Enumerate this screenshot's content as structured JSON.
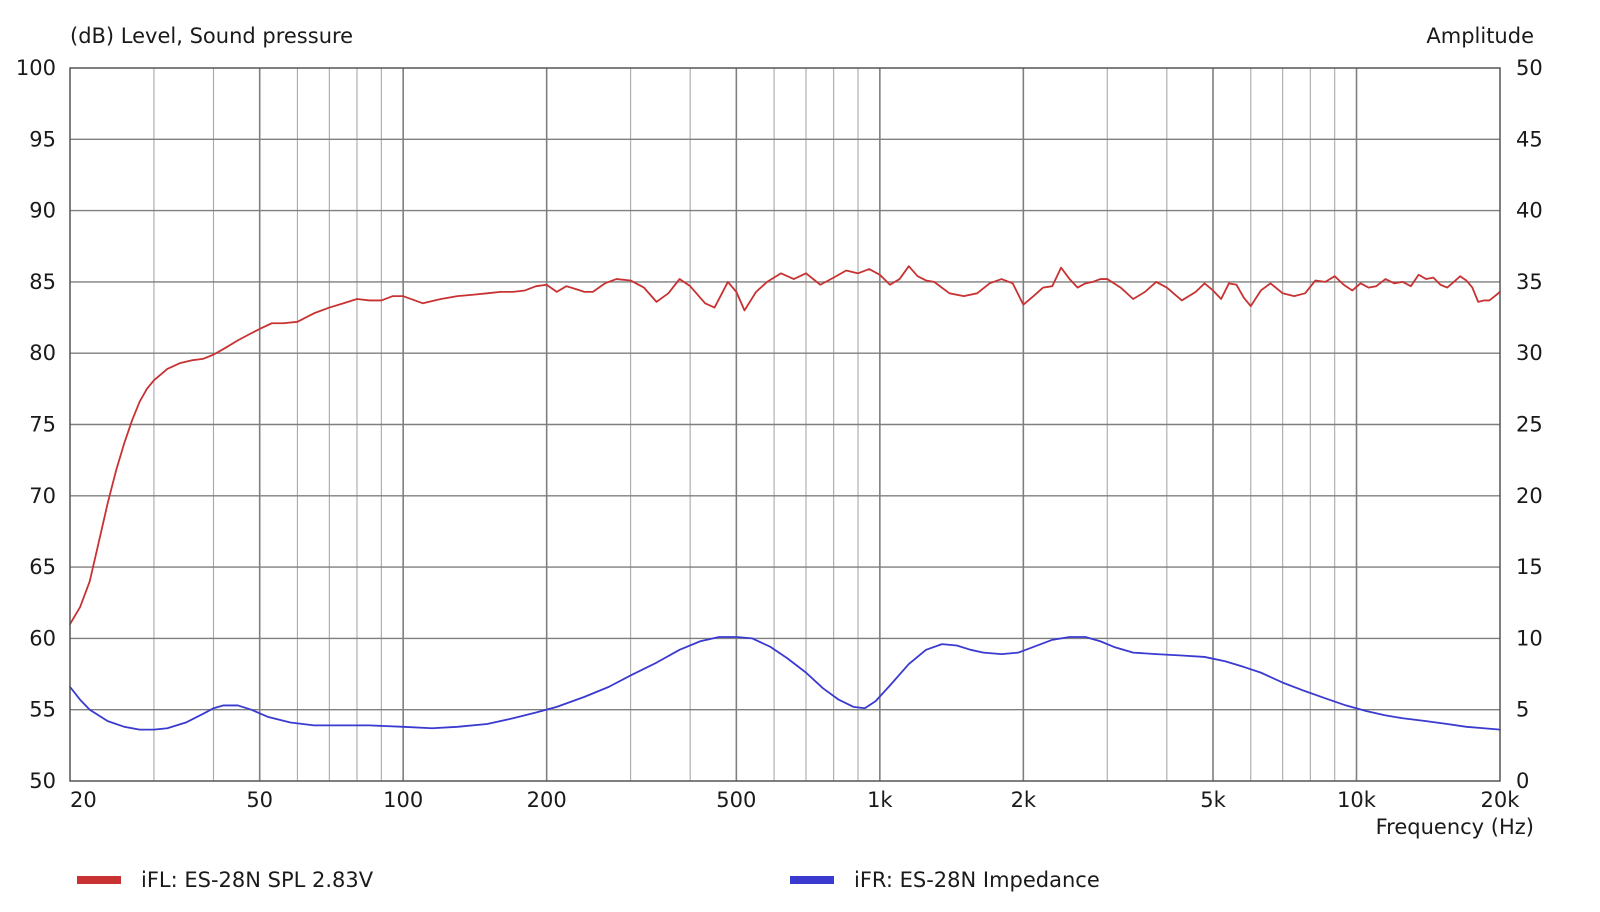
{
  "chart_data": {
    "type": "line",
    "title_left": "(dB)  Level, Sound pressure",
    "title_right": "Amplitude",
    "xlabel": "Frequency  (Hz)",
    "x_scale": "log",
    "xlim": [
      20,
      20000
    ],
    "ylim_left": [
      50,
      100
    ],
    "ylim_right": [
      0,
      50
    ],
    "grid": true,
    "x_ticks": [
      {
        "value": 20,
        "label": "20"
      },
      {
        "value": 50,
        "label": "50"
      },
      {
        "value": 100,
        "label": "100"
      },
      {
        "value": 200,
        "label": "200"
      },
      {
        "value": 500,
        "label": "500"
      },
      {
        "value": 1000,
        "label": "1k"
      },
      {
        "value": 2000,
        "label": "2k"
      },
      {
        "value": 5000,
        "label": "5k"
      },
      {
        "value": 10000,
        "label": "10k"
      },
      {
        "value": 20000,
        "label": "20k"
      }
    ],
    "y_ticks_left": [
      "50",
      "55",
      "60",
      "65",
      "70",
      "75",
      "80",
      "85",
      "90",
      "95",
      "100"
    ],
    "y_ticks_right": [
      "0",
      "5",
      "10",
      "15",
      "20",
      "25",
      "30",
      "35",
      "40",
      "45",
      "50"
    ],
    "legend_position": "bottom",
    "series": [
      {
        "name": "iFL: ES-28N SPL 2.83V",
        "color": "#c83232",
        "axis": "left",
        "points": [
          [
            20,
            61.0
          ],
          [
            21,
            62.2
          ],
          [
            22,
            64.0
          ],
          [
            23,
            66.8
          ],
          [
            24,
            69.5
          ],
          [
            25,
            71.8
          ],
          [
            26,
            73.7
          ],
          [
            27,
            75.3
          ],
          [
            28,
            76.6
          ],
          [
            29,
            77.5
          ],
          [
            30,
            78.1
          ],
          [
            32,
            78.9
          ],
          [
            34,
            79.3
          ],
          [
            36,
            79.5
          ],
          [
            38,
            79.6
          ],
          [
            40,
            79.9
          ],
          [
            42,
            80.3
          ],
          [
            45,
            80.9
          ],
          [
            48,
            81.4
          ],
          [
            50,
            81.7
          ],
          [
            53,
            82.1
          ],
          [
            56,
            82.1
          ],
          [
            60,
            82.2
          ],
          [
            65,
            82.8
          ],
          [
            70,
            83.2
          ],
          [
            75,
            83.5
          ],
          [
            80,
            83.8
          ],
          [
            85,
            83.7
          ],
          [
            90,
            83.7
          ],
          [
            95,
            84.0
          ],
          [
            100,
            84.0
          ],
          [
            110,
            83.5
          ],
          [
            120,
            83.8
          ],
          [
            130,
            84.0
          ],
          [
            140,
            84.1
          ],
          [
            150,
            84.2
          ],
          [
            160,
            84.3
          ],
          [
            170,
            84.3
          ],
          [
            180,
            84.4
          ],
          [
            190,
            84.7
          ],
          [
            200,
            84.8
          ],
          [
            210,
            84.3
          ],
          [
            220,
            84.7
          ],
          [
            230,
            84.5
          ],
          [
            240,
            84.3
          ],
          [
            250,
            84.3
          ],
          [
            265,
            84.9
          ],
          [
            280,
            85.2
          ],
          [
            300,
            85.1
          ],
          [
            320,
            84.6
          ],
          [
            340,
            83.6
          ],
          [
            360,
            84.2
          ],
          [
            380,
            85.2
          ],
          [
            400,
            84.7
          ],
          [
            430,
            83.5
          ],
          [
            450,
            83.2
          ],
          [
            480,
            85.0
          ],
          [
            500,
            84.3
          ],
          [
            520,
            83.0
          ],
          [
            550,
            84.3
          ],
          [
            580,
            85.0
          ],
          [
            620,
            85.6
          ],
          [
            660,
            85.2
          ],
          [
            700,
            85.6
          ],
          [
            750,
            84.8
          ],
          [
            800,
            85.3
          ],
          [
            850,
            85.8
          ],
          [
            900,
            85.6
          ],
          [
            950,
            85.9
          ],
          [
            1000,
            85.5
          ],
          [
            1050,
            84.8
          ],
          [
            1100,
            85.2
          ],
          [
            1150,
            86.1
          ],
          [
            1200,
            85.4
          ],
          [
            1250,
            85.1
          ],
          [
            1300,
            85.0
          ],
          [
            1400,
            84.2
          ],
          [
            1500,
            84.0
          ],
          [
            1600,
            84.2
          ],
          [
            1700,
            84.9
          ],
          [
            1800,
            85.2
          ],
          [
            1900,
            84.9
          ],
          [
            2000,
            83.4
          ],
          [
            2100,
            84.0
          ],
          [
            2200,
            84.6
          ],
          [
            2300,
            84.7
          ],
          [
            2400,
            86.0
          ],
          [
            2500,
            85.2
          ],
          [
            2600,
            84.6
          ],
          [
            2700,
            84.9
          ],
          [
            2800,
            85.0
          ],
          [
            2900,
            85.2
          ],
          [
            3000,
            85.2
          ],
          [
            3200,
            84.6
          ],
          [
            3400,
            83.8
          ],
          [
            3600,
            84.3
          ],
          [
            3800,
            85.0
          ],
          [
            4000,
            84.6
          ],
          [
            4300,
            83.7
          ],
          [
            4600,
            84.3
          ],
          [
            4800,
            84.9
          ],
          [
            5000,
            84.4
          ],
          [
            5200,
            83.8
          ],
          [
            5400,
            84.9
          ],
          [
            5600,
            84.8
          ],
          [
            5800,
            83.9
          ],
          [
            6000,
            83.3
          ],
          [
            6300,
            84.4
          ],
          [
            6600,
            84.9
          ],
          [
            7000,
            84.2
          ],
          [
            7400,
            84.0
          ],
          [
            7800,
            84.2
          ],
          [
            8200,
            85.1
          ],
          [
            8600,
            85.0
          ],
          [
            9000,
            85.4
          ],
          [
            9400,
            84.8
          ],
          [
            9800,
            84.4
          ],
          [
            10200,
            84.9
          ],
          [
            10600,
            84.6
          ],
          [
            11000,
            84.7
          ],
          [
            11500,
            85.2
          ],
          [
            12000,
            84.9
          ],
          [
            12500,
            85.0
          ],
          [
            13000,
            84.7
          ],
          [
            13500,
            85.5
          ],
          [
            14000,
            85.2
          ],
          [
            14500,
            85.3
          ],
          [
            15000,
            84.8
          ],
          [
            15500,
            84.6
          ],
          [
            16000,
            85.0
          ],
          [
            16500,
            85.4
          ],
          [
            17000,
            85.1
          ],
          [
            17500,
            84.6
          ],
          [
            18000,
            83.6
          ],
          [
            18500,
            83.7
          ],
          [
            19000,
            83.7
          ],
          [
            19500,
            84.0
          ],
          [
            20000,
            84.3
          ]
        ]
      },
      {
        "name": "iFR: ES-28N Impedance",
        "color": "#3a3ad0",
        "axis": "right",
        "points": [
          [
            20,
            6.6
          ],
          [
            21,
            5.7
          ],
          [
            22,
            5.0
          ],
          [
            24,
            4.2
          ],
          [
            26,
            3.8
          ],
          [
            28,
            3.6
          ],
          [
            30,
            3.6
          ],
          [
            32,
            3.7
          ],
          [
            35,
            4.1
          ],
          [
            38,
            4.7
          ],
          [
            40,
            5.1
          ],
          [
            42,
            5.3
          ],
          [
            45,
            5.3
          ],
          [
            48,
            5.0
          ],
          [
            52,
            4.5
          ],
          [
            58,
            4.1
          ],
          [
            65,
            3.9
          ],
          [
            75,
            3.9
          ],
          [
            85,
            3.9
          ],
          [
            100,
            3.8
          ],
          [
            115,
            3.7
          ],
          [
            130,
            3.8
          ],
          [
            150,
            4.0
          ],
          [
            170,
            4.4
          ],
          [
            190,
            4.8
          ],
          [
            210,
            5.2
          ],
          [
            240,
            5.9
          ],
          [
            270,
            6.6
          ],
          [
            300,
            7.4
          ],
          [
            340,
            8.3
          ],
          [
            380,
            9.2
          ],
          [
            420,
            9.8
          ],
          [
            460,
            10.1
          ],
          [
            500,
            10.1
          ],
          [
            540,
            10.0
          ],
          [
            590,
            9.4
          ],
          [
            640,
            8.6
          ],
          [
            700,
            7.6
          ],
          [
            760,
            6.5
          ],
          [
            820,
            5.7
          ],
          [
            880,
            5.2
          ],
          [
            930,
            5.1
          ],
          [
            980,
            5.6
          ],
          [
            1050,
            6.7
          ],
          [
            1150,
            8.2
          ],
          [
            1250,
            9.2
          ],
          [
            1350,
            9.6
          ],
          [
            1450,
            9.5
          ],
          [
            1550,
            9.2
          ],
          [
            1650,
            9.0
          ],
          [
            1800,
            8.9
          ],
          [
            1950,
            9.0
          ],
          [
            2100,
            9.4
          ],
          [
            2300,
            9.9
          ],
          [
            2500,
            10.1
          ],
          [
            2700,
            10.1
          ],
          [
            2900,
            9.8
          ],
          [
            3100,
            9.4
          ],
          [
            3400,
            9.0
          ],
          [
            3800,
            8.9
          ],
          [
            4300,
            8.8
          ],
          [
            4800,
            8.7
          ],
          [
            5300,
            8.4
          ],
          [
            5800,
            8.0
          ],
          [
            6300,
            7.6
          ],
          [
            7000,
            6.9
          ],
          [
            7800,
            6.3
          ],
          [
            8600,
            5.8
          ],
          [
            9500,
            5.3
          ],
          [
            10500,
            4.9
          ],
          [
            11500,
            4.6
          ],
          [
            12500,
            4.4
          ],
          [
            14000,
            4.2
          ],
          [
            15500,
            4.0
          ],
          [
            17000,
            3.8
          ],
          [
            18500,
            3.7
          ],
          [
            20000,
            3.6
          ]
        ]
      }
    ]
  }
}
